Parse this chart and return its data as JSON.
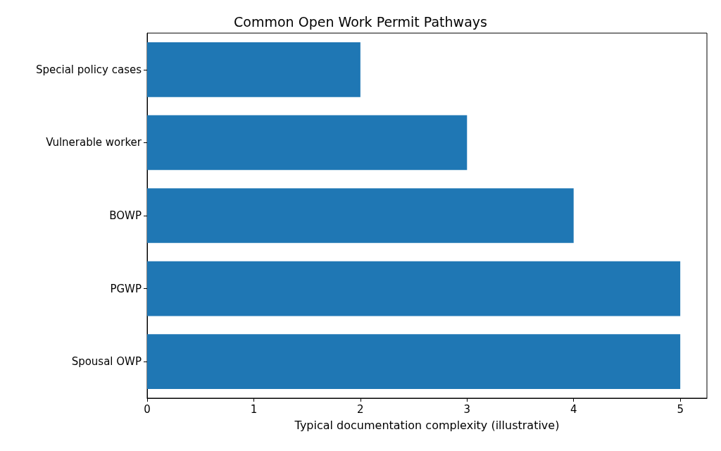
{
  "chart_data": {
    "type": "bar",
    "orientation": "horizontal",
    "title": "Common Open Work Permit Pathways",
    "xlabel": "Typical documentation complexity (illustrative)",
    "categories": [
      "Special policy cases",
      "Vulnerable worker",
      "BOWP",
      "PGWP",
      "Spousal OWP"
    ],
    "values": [
      2,
      3,
      4,
      5,
      5
    ],
    "color": "#1f77b4",
    "xlim": [
      0,
      5.25
    ],
    "xticks": [
      0,
      1,
      2,
      3,
      4,
      5
    ],
    "grid": false
  }
}
